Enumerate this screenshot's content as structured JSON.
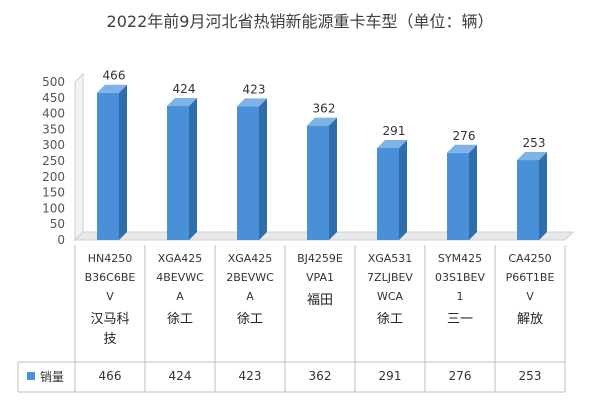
{
  "chart_data": {
    "type": "bar",
    "title": "2022年前9月河北省热销新能源重卡车型（单位：辆）",
    "xlabel": "",
    "ylabel": "",
    "ylim": [
      0,
      500
    ],
    "yticks": [
      0,
      50,
      100,
      150,
      200,
      250,
      300,
      350,
      400,
      450,
      500
    ],
    "grid": false,
    "legend": "bottom-left (data table)",
    "bar_color": "#4a90d9",
    "categories": [
      {
        "model": [
          "HN4250",
          "B36C6BE",
          "V"
        ],
        "brand": [
          "汉马科",
          "技"
        ]
      },
      {
        "model": [
          "XGA425",
          "4BEVWC",
          "A"
        ],
        "brand": [
          "徐工"
        ]
      },
      {
        "model": [
          "XGA425",
          "2BEVWC",
          "A"
        ],
        "brand": [
          "徐工"
        ]
      },
      {
        "model": [
          "BJ4259E",
          "VPA1"
        ],
        "brand": [
          "福田"
        ]
      },
      {
        "model": [
          "XGA531",
          "7ZLJBEV",
          "WCA"
        ],
        "brand": [
          "徐工"
        ]
      },
      {
        "model": [
          "SYM425",
          "03S1BEV",
          "1"
        ],
        "brand": [
          "三一"
        ]
      },
      {
        "model": [
          "CA4250",
          "P66T1BE",
          "V"
        ],
        "brand": [
          "解放"
        ]
      }
    ],
    "series": [
      {
        "name": "销量",
        "values": [
          466,
          424,
          423,
          362,
          291,
          276,
          253
        ]
      }
    ]
  }
}
